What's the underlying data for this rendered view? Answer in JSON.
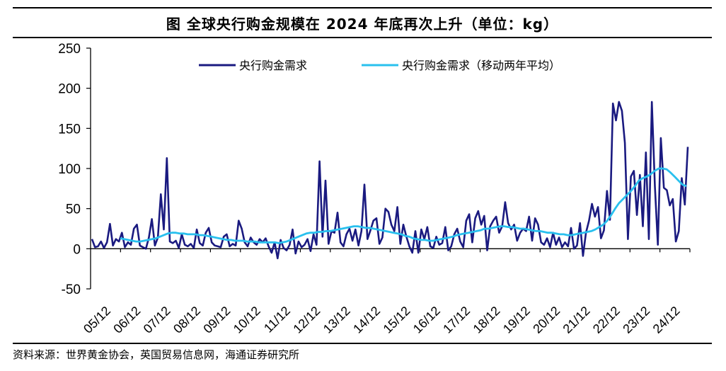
{
  "title": "图    全球央行购金规模在 2024 年底再次上升（单位：kg）",
  "source": "资料来源：世界黄金协会，英国贸易信息网，海通证券研究所",
  "chart_data": {
    "type": "line",
    "x_tick_labels": [
      "05/12",
      "06/12",
      "07/12",
      "08/12",
      "09/12",
      "10/12",
      "11/12",
      "12/12",
      "13/12",
      "14/12",
      "15/12",
      "16/12",
      "17/12",
      "18/12",
      "19/12",
      "20/12",
      "21/12",
      "22/12",
      "23/12",
      "24/12"
    ],
    "ylim": [
      -50,
      250
    ],
    "yticks": [
      -50,
      0,
      50,
      100,
      150,
      200,
      250
    ],
    "legend_position": "top",
    "series": [
      {
        "name": "央行购金需求",
        "color": "#1a1a80",
        "values": [
          12,
          2,
          3,
          9,
          1,
          8,
          31,
          4,
          12,
          9,
          20,
          2,
          8,
          5,
          25,
          30,
          4,
          2,
          0,
          14,
          37,
          4,
          14,
          68,
          24,
          113,
          9,
          7,
          10,
          1,
          18,
          5,
          3,
          6,
          1,
          24,
          7,
          4,
          20,
          26,
          8,
          4,
          3,
          2,
          15,
          18,
          3,
          6,
          4,
          35,
          25,
          8,
          3,
          14,
          8,
          5,
          12,
          8,
          13,
          3,
          -5,
          8,
          -12,
          11,
          1,
          -2,
          5,
          24,
          -6,
          9,
          2,
          5,
          12,
          -3,
          18,
          5,
          109,
          15,
          85,
          6,
          22,
          20,
          45,
          8,
          3,
          18,
          25,
          10,
          24,
          4,
          22,
          80,
          12,
          23,
          35,
          38,
          6,
          14,
          50,
          46,
          30,
          22,
          52,
          6,
          30,
          15,
          3,
          -5,
          22,
          -5,
          24,
          12,
          27,
          3,
          1,
          15,
          5,
          7,
          27,
          -2,
          3,
          18,
          25,
          9,
          2,
          35,
          43,
          8,
          38,
          47,
          30,
          41,
          -2,
          28,
          35,
          40,
          20,
          28,
          58,
          32,
          24,
          30,
          10,
          20,
          25,
          22,
          40,
          10,
          38,
          30,
          8,
          5,
          13,
          2,
          20,
          5,
          14,
          2,
          8,
          3,
          26,
          0,
          4,
          32,
          -9,
          20,
          35,
          56,
          40,
          52,
          13,
          23,
          72,
          36,
          181,
          160,
          183,
          172,
          132,
          12,
          90,
          97,
          42,
          92,
          28,
          120,
          12,
          183,
          78,
          5,
          138,
          76,
          73,
          54,
          62,
          9,
          22,
          88,
          55,
          127
        ]
      },
      {
        "name": "央行购金需求（移动两年平均）",
        "color": "#29c0ee",
        "values": [
          13,
          12,
          11,
          10,
          9,
          9,
          10,
          11,
          12,
          13,
          15,
          17,
          19,
          20,
          20,
          19,
          19,
          18,
          18,
          18,
          17,
          17,
          16,
          15,
          14,
          13,
          12,
          11,
          11,
          10,
          10,
          10,
          9,
          9,
          9,
          8,
          8,
          8,
          8,
          8,
          7,
          8,
          9,
          11,
          13,
          15,
          17,
          19,
          20,
          20,
          21,
          21,
          22,
          22,
          23,
          24,
          25,
          26,
          27,
          28,
          28,
          27,
          26,
          26,
          25,
          24,
          23,
          22,
          21,
          20,
          19,
          18,
          16,
          15,
          13,
          12,
          11,
          11,
          10,
          10,
          11,
          12,
          13,
          14,
          15,
          17,
          18,
          19,
          20,
          21,
          22,
          23,
          25,
          25,
          26,
          27,
          28,
          28,
          27,
          27,
          26,
          25,
          25,
          24,
          23,
          22,
          22,
          21,
          20,
          20,
          19,
          18,
          18,
          17,
          17,
          18,
          19,
          20,
          21,
          22,
          24,
          27,
          30,
          35,
          42,
          50,
          57,
          62,
          67,
          72,
          78,
          85,
          88,
          90,
          93,
          97,
          100,
          100,
          99,
          95,
          90,
          85,
          80,
          78
        ]
      }
    ]
  }
}
